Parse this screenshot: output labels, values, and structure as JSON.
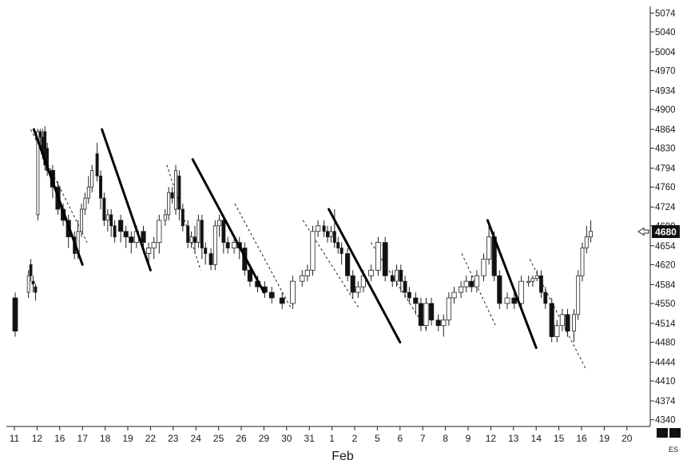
{
  "chart_data": {
    "type": "candlestick",
    "symbol": "ES",
    "month_label": "Feb",
    "last_price": "4680",
    "y_ticks": [
      5074,
      5040,
      5004,
      4970,
      4934,
      4900,
      4864,
      4830,
      4794,
      4760,
      4724,
      4690,
      4654,
      4620,
      4584,
      4550,
      4514,
      4480,
      4444,
      4410,
      4374,
      4340
    ],
    "ylim": [
      4328,
      5086
    ],
    "x_labels": [
      "11",
      "12",
      "16",
      "17",
      "18",
      "19",
      "22",
      "23",
      "24",
      "25",
      "26",
      "29",
      "30",
      "31",
      "1",
      "2",
      "5",
      "6",
      "7",
      "8",
      "9",
      "12",
      "13",
      "14",
      "15",
      "16",
      "19",
      "20"
    ],
    "grid": false,
    "candles": [
      {
        "d": "11",
        "b": [
          [
            4560,
            4500,
            4570,
            4490
          ]
        ]
      },
      {
        "d": "12",
        "b": [
          [
            4570,
            4600,
            4610,
            4560
          ],
          [
            4620,
            4600,
            4630,
            4590
          ],
          [
            4590,
            4585,
            4600,
            4570
          ],
          [
            4580,
            4570,
            4585,
            4555
          ],
          [
            4710,
            4860,
            4865,
            4700
          ],
          [
            4860,
            4850,
            4865,
            4830
          ],
          [
            4850,
            4820,
            4865,
            4810
          ],
          [
            4860,
            4800,
            4870,
            4790
          ],
          [
            4830,
            4790,
            4840,
            4780
          ]
        ]
      },
      {
        "d": "16",
        "b": [
          [
            4790,
            4760,
            4800,
            4740
          ],
          [
            4760,
            4720,
            4770,
            4710
          ],
          [
            4720,
            4700,
            4730,
            4690
          ],
          [
            4700,
            4670,
            4710,
            4650
          ]
        ]
      },
      {
        "d": "17",
        "b": [
          [
            4670,
            4640,
            4680,
            4630
          ],
          [
            4640,
            4680,
            4700,
            4630
          ],
          [
            4680,
            4720,
            4730,
            4670
          ],
          [
            4720,
            4740,
            4750,
            4710
          ],
          [
            4740,
            4760,
            4780,
            4730
          ],
          [
            4760,
            4790,
            4800,
            4750
          ]
        ]
      },
      {
        "d": "18",
        "b": [
          [
            4820,
            4780,
            4840,
            4770
          ],
          [
            4780,
            4740,
            4790,
            4720
          ],
          [
            4740,
            4700,
            4750,
            4690
          ],
          [
            4700,
            4710,
            4720,
            4680
          ],
          [
            4710,
            4690,
            4720,
            4670
          ],
          [
            4690,
            4670,
            4700,
            4660
          ]
        ]
      },
      {
        "d": "19",
        "b": [
          [
            4700,
            4680,
            4710,
            4660
          ],
          [
            4680,
            4670,
            4690,
            4650
          ],
          [
            4670,
            4660,
            4680,
            4640
          ],
          [
            4660,
            4680,
            4690,
            4650
          ]
        ]
      },
      {
        "d": "22",
        "b": [
          [
            4680,
            4660,
            4690,
            4640
          ],
          [
            4640,
            4650,
            4660,
            4620
          ],
          [
            4650,
            4660,
            4670,
            4630
          ],
          [
            4660,
            4700,
            4710,
            4640
          ]
        ]
      },
      {
        "d": "23",
        "b": [
          [
            4700,
            4710,
            4720,
            4690
          ],
          [
            4710,
            4750,
            4760,
            4700
          ],
          [
            4750,
            4740,
            4760,
            4730
          ],
          [
            4720,
            4790,
            4800,
            4710
          ],
          [
            4780,
            4720,
            4790,
            4700
          ],
          [
            4720,
            4690,
            4730,
            4680
          ]
        ]
      },
      {
        "d": "24",
        "b": [
          [
            4690,
            4660,
            4700,
            4650
          ],
          [
            4660,
            4670,
            4680,
            4650
          ],
          [
            4670,
            4660,
            4690,
            4640
          ],
          [
            4660,
            4700,
            4710,
            4650
          ],
          [
            4700,
            4650,
            4710,
            4630
          ],
          [
            4650,
            4640,
            4660,
            4620
          ]
        ]
      },
      {
        "d": "25",
        "b": [
          [
            4640,
            4620,
            4650,
            4610
          ],
          [
            4620,
            4690,
            4700,
            4610
          ],
          [
            4690,
            4700,
            4710,
            4670
          ],
          [
            4700,
            4660,
            4710,
            4640
          ],
          [
            4660,
            4650,
            4670,
            4640
          ]
        ]
      },
      {
        "d": "26",
        "b": [
          [
            4650,
            4660,
            4670,
            4640
          ],
          [
            4660,
            4650,
            4670,
            4630
          ],
          [
            4650,
            4610,
            4660,
            4600
          ],
          [
            4610,
            4590,
            4620,
            4580
          ]
        ]
      },
      {
        "d": "29",
        "b": [
          [
            4590,
            4580,
            4600,
            4570
          ],
          [
            4580,
            4570,
            4590,
            4560
          ],
          [
            4570,
            4560,
            4580,
            4550
          ]
        ]
      },
      {
        "d": "30",
        "b": [
          [
            4560,
            4550,
            4570,
            4540
          ],
          [
            4550,
            4590,
            4600,
            4540
          ]
        ]
      },
      {
        "d": "31",
        "b": [
          [
            4590,
            4600,
            4610,
            4580
          ],
          [
            4600,
            4610,
            4620,
            4590
          ],
          [
            4610,
            4680,
            4690,
            4600
          ],
          [
            4680,
            4690,
            4700,
            4670
          ]
        ]
      },
      {
        "d": "1",
        "b": [
          [
            4690,
            4680,
            4700,
            4670
          ],
          [
            4680,
            4670,
            4690,
            4660
          ],
          [
            4670,
            4680,
            4690,
            4660
          ],
          [
            4680,
            4660,
            4720,
            4650
          ],
          [
            4660,
            4650,
            4670,
            4640
          ],
          [
            4650,
            4640,
            4660,
            4620
          ]
        ]
      },
      {
        "d": "2",
        "b": [
          [
            4640,
            4600,
            4650,
            4590
          ],
          [
            4600,
            4570,
            4610,
            4560
          ],
          [
            4570,
            4580,
            4590,
            4560
          ],
          [
            4580,
            4600,
            4610,
            4570
          ]
        ]
      },
      {
        "d": "5",
        "b": [
          [
            4600,
            4610,
            4620,
            4590
          ],
          [
            4610,
            4660,
            4670,
            4600
          ],
          [
            4660,
            4600,
            4670,
            4590
          ]
        ]
      },
      {
        "d": "6",
        "b": [
          [
            4600,
            4590,
            4610,
            4580
          ],
          [
            4590,
            4610,
            4620,
            4580
          ],
          [
            4610,
            4590,
            4620,
            4570
          ],
          [
            4590,
            4570,
            4600,
            4560
          ],
          [
            4570,
            4560,
            4580,
            4550
          ]
        ]
      },
      {
        "d": "7",
        "b": [
          [
            4560,
            4550,
            4570,
            4530
          ],
          [
            4550,
            4510,
            4560,
            4500
          ],
          [
            4510,
            4550,
            4560,
            4500
          ],
          [
            4550,
            4520,
            4560,
            4510
          ]
        ]
      },
      {
        "d": "8",
        "b": [
          [
            4520,
            4510,
            4530,
            4500
          ],
          [
            4510,
            4520,
            4530,
            4490
          ],
          [
            4520,
            4560,
            4570,
            4510
          ],
          [
            4560,
            4570,
            4580,
            4550
          ]
        ]
      },
      {
        "d": "9",
        "b": [
          [
            4570,
            4580,
            4590,
            4560
          ],
          [
            4580,
            4590,
            4600,
            4570
          ],
          [
            4590,
            4580,
            4600,
            4570
          ],
          [
            4580,
            4600,
            4610,
            4570
          ]
        ]
      },
      {
        "d": "12",
        "b": [
          [
            4600,
            4630,
            4640,
            4590
          ],
          [
            4630,
            4670,
            4690,
            4620
          ],
          [
            4670,
            4600,
            4680,
            4590
          ],
          [
            4600,
            4550,
            4610,
            4540
          ]
        ]
      },
      {
        "d": "13",
        "b": [
          [
            4550,
            4560,
            4570,
            4540
          ],
          [
            4560,
            4550,
            4570,
            4540
          ],
          [
            4550,
            4590,
            4600,
            4540
          ]
        ]
      },
      {
        "d": "14",
        "b": [
          [
            4590,
            4590,
            4600,
            4580
          ],
          [
            4590,
            4595,
            4600,
            4580
          ],
          [
            4595,
            4600,
            4610,
            4590
          ],
          [
            4600,
            4570,
            4610,
            4560
          ],
          [
            4570,
            4550,
            4580,
            4540
          ]
        ]
      },
      {
        "d": "15",
        "b": [
          [
            4550,
            4490,
            4560,
            4480
          ],
          [
            4490,
            4510,
            4520,
            4480
          ],
          [
            4510,
            4530,
            4540,
            4500
          ],
          [
            4530,
            4500,
            4540,
            4490
          ]
        ]
      },
      {
        "d": "16",
        "b": [
          [
            4500,
            4530,
            4540,
            4480
          ],
          [
            4530,
            4600,
            4610,
            4520
          ],
          [
            4600,
            4650,
            4660,
            4590
          ],
          [
            4650,
            4670,
            4690,
            4640
          ],
          [
            4670,
            4680,
            4700,
            4660
          ]
        ]
      }
    ],
    "trend_lines_solid": [
      {
        "from": [
          "12",
          4864
        ],
        "to": [
          "17",
          4620
        ]
      },
      {
        "from": [
          "18",
          4864
        ],
        "to": [
          "22",
          4610
        ]
      },
      {
        "from": [
          "24",
          4810
        ],
        "to": [
          "29",
          4570
        ]
      },
      {
        "from": [
          "1",
          4720
        ],
        "to": [
          "6",
          4480
        ]
      },
      {
        "from": [
          "12",
          4700
        ],
        "to": [
          "14",
          4470
        ]
      }
    ],
    "trend_lines_dashed": [
      {
        "from": [
          "12",
          4864
        ],
        "to": [
          "17",
          4660
        ]
      },
      {
        "from": [
          "23",
          4800
        ],
        "to": [
          "24",
          4610
        ]
      },
      {
        "from": [
          "26",
          4730
        ],
        "to": [
          "30",
          4540
        ]
      },
      {
        "from": [
          "31",
          4700
        ],
        "to": [
          "2",
          4540
        ]
      },
      {
        "from": [
          "5",
          4660
        ],
        "to": [
          "7",
          4500
        ]
      },
      {
        "from": [
          "9",
          4640
        ],
        "to": [
          "12",
          4510
        ]
      },
      {
        "from": [
          "14",
          4630
        ],
        "to": [
          "16",
          4430
        ]
      }
    ]
  }
}
